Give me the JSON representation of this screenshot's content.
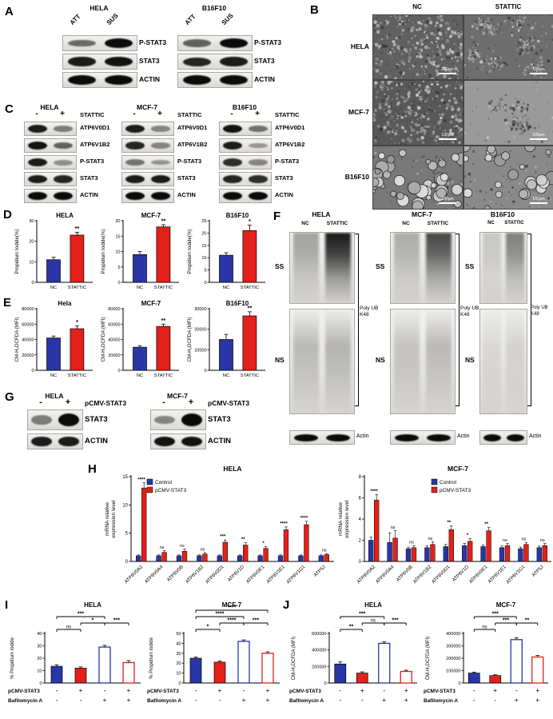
{
  "colors": {
    "blue": "#2936a5",
    "red": "#e3201b",
    "black": "#000000"
  },
  "panels": {
    "A": {
      "letter": "A",
      "groups": [
        {
          "title": "HELA",
          "lanes": [
            "ATT",
            "SUS"
          ],
          "rows": [
            {
              "label": "P-STAT3",
              "intensity": [
                0.45,
                1
              ]
            },
            {
              "label": "STAT3",
              "intensity": [
                0.9,
                0.95
              ]
            },
            {
              "label": "ACTIN",
              "intensity": [
                1,
                1
              ]
            }
          ]
        },
        {
          "title": "B16F10",
          "lanes": [
            "ATT",
            "SUS"
          ],
          "rows": [
            {
              "label": "P-STAT3",
              "intensity": [
                0.5,
                1
              ]
            },
            {
              "label": "STAT3",
              "intensity": [
                0.85,
                0.9
              ]
            },
            {
              "label": "ACTIN",
              "intensity": [
                1,
                1
              ]
            }
          ]
        }
      ]
    },
    "B": {
      "letter": "B",
      "columns": [
        "NC",
        "STATTIC"
      ],
      "rows": [
        "HELA",
        "MCF-7",
        "B16F10"
      ],
      "scale_label": "100μm"
    },
    "C": {
      "letter": "C",
      "treatment_label": "STATTIC",
      "signs": [
        "-",
        "+"
      ],
      "groups": [
        {
          "title": "HELA",
          "rows": [
            {
              "label": "ATP6V0D1",
              "intensity": [
                0.9,
                0.35
              ]
            },
            {
              "label": "ATP6V1B2",
              "intensity": [
                0.95,
                0.5
              ]
            },
            {
              "label": "P-STAT3",
              "intensity": [
                0.9,
                0.25
              ]
            },
            {
              "label": "STAT3",
              "intensity": [
                0.9,
                0.85
              ]
            },
            {
              "label": "ACTIN",
              "intensity": [
                1,
                1
              ]
            }
          ]
        },
        {
          "title": "MCF-7",
          "rows": [
            {
              "label": "ATP6V0D1",
              "intensity": [
                0.9,
                0.3
              ]
            },
            {
              "label": "ATP6V1B2",
              "intensity": [
                0.85,
                0.3
              ]
            },
            {
              "label": "P-STAT3",
              "intensity": [
                0.4,
                0.2
              ]
            },
            {
              "label": "STAT3",
              "intensity": [
                0.9,
                0.9
              ]
            },
            {
              "label": "ACTIN",
              "intensity": [
                1,
                1
              ]
            }
          ]
        },
        {
          "title": "B16F10",
          "rows": [
            {
              "label": "ATP6V0D1",
              "intensity": [
                0.95,
                0.4
              ]
            },
            {
              "label": "ATP6V1B2",
              "intensity": [
                0.9,
                0.2
              ]
            },
            {
              "label": "P-STAT3",
              "intensity": [
                0.8,
                0.3
              ]
            },
            {
              "label": "STAT3",
              "intensity": [
                0.85,
                0.8
              ]
            },
            {
              "label": "ACTIN",
              "intensity": [
                1,
                1
              ]
            }
          ]
        }
      ]
    },
    "D": {
      "letter": "D"
    },
    "E": {
      "letter": "E"
    },
    "F": {
      "letter": "F",
      "ss_label": "SS",
      "ns_label": "NS",
      "actin_label": "Actin",
      "bracket_label": "Poly UB\nK48",
      "groups": [
        {
          "title": "HELA",
          "lanes": [
            "NC",
            "STATTIC"
          ],
          "ss": [
            0.35,
            0.95
          ],
          "ns": [
            0.3,
            0.35
          ],
          "actin": [
            1,
            1
          ]
        },
        {
          "title": "MCF-7",
          "lanes": [
            "NC",
            "STATTIC"
          ],
          "ss": [
            0.3,
            0.75
          ],
          "ns": [
            0.25,
            0.3
          ],
          "actin": [
            1,
            1
          ]
        },
        {
          "title": "B16F10",
          "lanes": [
            "NC",
            "STATTIC"
          ],
          "ss": [
            0.18,
            0.5
          ],
          "ns": [
            0.12,
            0.15
          ],
          "actin": [
            1,
            1
          ]
        }
      ]
    },
    "G": {
      "letter": "G",
      "treatment_label": "pCMV-STAT3",
      "signs": [
        "-",
        "+"
      ],
      "groups": [
        {
          "title": "HELA",
          "rows": [
            {
              "label": "STAT3",
              "intensity": [
                0.35,
                1
              ]
            },
            {
              "label": "ACTIN",
              "intensity": [
                0.9,
                0.9
              ]
            }
          ]
        },
        {
          "title": "MCF-7",
          "rows": [
            {
              "label": "STAT3",
              "intensity": [
                0.3,
                1
              ]
            },
            {
              "label": "ACTIN",
              "intensity": [
                0.95,
                0.95
              ]
            }
          ]
        }
      ]
    },
    "H": {
      "letter": "H"
    },
    "I": {
      "letter": "I"
    },
    "J": {
      "letter": "J"
    }
  },
  "chart_data": [
    {
      "id": "D-HELA",
      "panel": "D",
      "type": "bar",
      "title": "HELA",
      "ylabel": "Propidium Iodide(%)",
      "categories": [
        "NC",
        "STATTIC"
      ],
      "values": [
        11,
        23
      ],
      "errors": [
        1.2,
        1.4
      ],
      "sig": "**",
      "ylim": [
        0,
        30
      ],
      "yticks": [
        0,
        10,
        20,
        30
      ],
      "styles": [
        "solid-blue",
        "solid-red"
      ]
    },
    {
      "id": "D-MCF7",
      "panel": "D",
      "type": "bar",
      "title": "MCF-7",
      "ylabel": "Propidium Iodide(%)",
      "categories": [
        "NC",
        "STATTIC"
      ],
      "values": [
        9,
        18
      ],
      "errors": [
        1,
        0.7
      ],
      "sig": "**",
      "ylim": [
        0,
        20
      ],
      "yticks": [
        0,
        5,
        10,
        15,
        20
      ],
      "styles": [
        "solid-blue",
        "solid-red"
      ]
    },
    {
      "id": "D-B16F10",
      "panel": "D",
      "type": "bar",
      "title": "B16F10",
      "ylabel": "Propidium Iodide(%)",
      "categories": [
        "NC",
        "STATTIC"
      ],
      "values": [
        11,
        21
      ],
      "errors": [
        1,
        2.2
      ],
      "sig": "*",
      "ylim": [
        0,
        25
      ],
      "yticks": [
        0,
        5,
        10,
        15,
        20,
        25
      ],
      "styles": [
        "solid-blue",
        "solid-red"
      ]
    },
    {
      "id": "E-Hela",
      "panel": "E",
      "type": "bar",
      "title": "Hela",
      "ylabel": "CM-H₂DCFDA (MFI)",
      "categories": [
        "NC",
        "STATTIC"
      ],
      "values": [
        42000,
        54000
      ],
      "errors": [
        2500,
        3500
      ],
      "sig": "*",
      "ylim": [
        0,
        80000
      ],
      "yticks": [
        0,
        20000,
        40000,
        60000,
        80000
      ],
      "styles": [
        "solid-blue",
        "solid-red"
      ]
    },
    {
      "id": "E-MCF7",
      "panel": "E",
      "type": "bar",
      "title": "MCF-7",
      "ylabel": "CM-H₂DCFDA (MFI)",
      "categories": [
        "NC",
        "STATTIC"
      ],
      "values": [
        30000,
        57000
      ],
      "errors": [
        2000,
        3000
      ],
      "sig": "**",
      "ylim": [
        0,
        80000
      ],
      "yticks": [
        0,
        20000,
        40000,
        60000,
        80000
      ],
      "styles": [
        "solid-blue",
        "solid-red"
      ]
    },
    {
      "id": "E-B16F10",
      "panel": "E",
      "type": "bar",
      "title": "B16F10",
      "ylabel": "CM-H₂DCFDA (MFI)",
      "categories": [
        "NC",
        "STATTIC"
      ],
      "values": [
        15000,
        26500
      ],
      "errors": [
        2500,
        2000
      ],
      "sig": "**",
      "ylim": [
        0,
        30000
      ],
      "yticks": [
        0,
        10000,
        20000,
        30000
      ],
      "styles": [
        "solid-blue",
        "solid-red"
      ]
    },
    {
      "id": "H-HELA",
      "panel": "H",
      "type": "grouped_bar",
      "title": "HELA",
      "ylabel_lines": [
        "mRNA relative",
        "expression level"
      ],
      "categories": [
        "ATP6V0A2",
        "ATP6V0A4",
        "ATP6V0B",
        "ATP6V1B2",
        "ATP6V0D1",
        "ATP6V1D",
        "ATP6V0E1",
        "ATP6V1E1",
        "ATP6V1G1",
        "ATP5J"
      ],
      "series": [
        {
          "name": "Control",
          "style": "solid-blue",
          "values": [
            1,
            1,
            1,
            1,
            1,
            1,
            1,
            1,
            1,
            1
          ],
          "errors": [
            0.15,
            0.15,
            0.15,
            0.15,
            0.15,
            0.15,
            0.15,
            0.15,
            0.15,
            0.15
          ]
        },
        {
          "name": "pCMV-STAT3",
          "style": "solid-red",
          "values": [
            13,
            1.6,
            1.8,
            1.3,
            3.4,
            2.9,
            2.3,
            5.6,
            6.5,
            1.2
          ],
          "errors": [
            0.9,
            0.3,
            0.4,
            0.25,
            0.4,
            0.4,
            0.3,
            0.5,
            0.6,
            0.2
          ]
        }
      ],
      "sig": [
        "****",
        "ns",
        "ns",
        "ns",
        "***",
        "**",
        "*",
        "****",
        "****",
        "ns"
      ],
      "ylim": [
        0,
        15
      ],
      "yticks": [
        0,
        5,
        10,
        15
      ],
      "legend_position": "top-left"
    },
    {
      "id": "H-MCF7",
      "panel": "H",
      "type": "grouped_bar",
      "title": "MCF-7",
      "ylabel_lines": [
        "mRNA relative",
        "expression level"
      ],
      "categories": [
        "ATP6V0A2",
        "ATP6V0A4",
        "ATP6V0B",
        "ATP6V1B2",
        "ATP6V0D1",
        "ATP6V1D",
        "ATP6V0E1",
        "ATP6V1E1",
        "ATP6V1G1",
        "ATP5J"
      ],
      "series": [
        {
          "name": "Control",
          "style": "solid-blue",
          "values": [
            2,
            1.8,
            1.2,
            1.3,
            1.4,
            1.5,
            1.4,
            1.3,
            1.2,
            1.3
          ],
          "errors": [
            0.3,
            0.9,
            0.15,
            0.2,
            0.2,
            0.2,
            0.15,
            0.15,
            0.15,
            0.15
          ]
        },
        {
          "name": "pCMV-STAT3",
          "style": "solid-red",
          "values": [
            5.8,
            2.2,
            1.3,
            1.6,
            3.0,
            1.9,
            2.9,
            1.5,
            1.6,
            1.5
          ],
          "errors": [
            0.5,
            0.7,
            0.2,
            0.25,
            0.35,
            0.25,
            0.3,
            0.2,
            0.2,
            0.2
          ]
        }
      ],
      "sig": [
        "****",
        "ns",
        "ns",
        "ns",
        "**",
        "*",
        "**",
        "ns",
        "ns",
        "ns"
      ],
      "ylim": [
        0,
        8
      ],
      "yticks": [
        0,
        2,
        4,
        6,
        8
      ],
      "legend_position": "top-center"
    },
    {
      "id": "I-HELA",
      "panel": "I",
      "type": "bar_brackets",
      "title": "HELA",
      "ylabel": "% Propidium iodide",
      "values": [
        13.5,
        12,
        29,
        16.5
      ],
      "errors": [
        1.2,
        1,
        1.4,
        1.6
      ],
      "styles": [
        "solid-blue",
        "solid-red",
        "open-blue",
        "open-red"
      ],
      "ylim": [
        0,
        40
      ],
      "yticks": [
        0,
        10,
        20,
        30,
        40
      ],
      "brackets": [
        {
          "from": 0,
          "to": 1,
          "label": "ns",
          "level": 0
        },
        {
          "from": 1,
          "to": 2,
          "label": "*",
          "level": 1
        },
        {
          "from": 2,
          "to": 3,
          "label": "***",
          "level": 1
        },
        {
          "from": 0,
          "to": 2,
          "label": "***",
          "level": 2
        }
      ],
      "conditions": [
        {
          "label": "pCMV-STAT3",
          "signs": [
            "-",
            "+",
            "-",
            "+"
          ]
        },
        {
          "label": "Bafilomycin A",
          "signs": [
            "-",
            "-",
            "+",
            "+"
          ]
        }
      ]
    },
    {
      "id": "I-MCF7",
      "panel": "I",
      "type": "bar_brackets",
      "title": "MCF-7",
      "ylabel": "% Propidium iodide",
      "values": [
        25,
        21,
        42,
        30
      ],
      "errors": [
        1.2,
        1.2,
        1.5,
        1.5
      ],
      "styles": [
        "solid-blue",
        "solid-red",
        "open-blue",
        "open-red"
      ],
      "ylim": [
        0,
        50
      ],
      "yticks": [
        0,
        10,
        20,
        30,
        40,
        50
      ],
      "brackets": [
        {
          "from": 0,
          "to": 1,
          "label": "*",
          "level": 0
        },
        {
          "from": 1,
          "to": 2,
          "label": "****",
          "level": 1
        },
        {
          "from": 2,
          "to": 3,
          "label": "***",
          "level": 1
        },
        {
          "from": 0,
          "to": 2,
          "label": "****",
          "level": 2
        },
        {
          "from": 0,
          "to": 3,
          "label": "****",
          "level": 3
        }
      ],
      "conditions": [
        {
          "label": "pCMV-STAT3",
          "signs": [
            "-",
            "+",
            "-",
            "+"
          ]
        },
        {
          "label": "Bafilomycin A",
          "signs": [
            "-",
            "-",
            "+",
            "+"
          ]
        }
      ]
    },
    {
      "id": "J-HELA",
      "panel": "J",
      "type": "bar_brackets",
      "title": "HELA",
      "ylabel": "CM-H₂DCFDA (MFI)",
      "values": [
        230000,
        120000,
        480000,
        140000
      ],
      "errors": [
        25000,
        15000,
        20000,
        15000
      ],
      "styles": [
        "solid-blue",
        "solid-red",
        "open-blue",
        "open-red"
      ],
      "ylim": [
        0,
        600000
      ],
      "yticks": [
        0,
        200000,
        400000,
        600000
      ],
      "brackets": [
        {
          "from": 0,
          "to": 1,
          "label": "**",
          "level": 0
        },
        {
          "from": 1,
          "to": 2,
          "label": "ns",
          "level": 1
        },
        {
          "from": 2,
          "to": 3,
          "label": "***",
          "level": 1
        },
        {
          "from": 0,
          "to": 2,
          "label": "***",
          "level": 2
        }
      ],
      "conditions": [
        {
          "label": "pCMV-STAT3",
          "signs": [
            "-",
            "+",
            "-",
            "+"
          ]
        },
        {
          "label": "Bafilomycin A",
          "signs": [
            "-",
            "-",
            "+",
            "+"
          ]
        }
      ]
    },
    {
      "id": "J-MCF7",
      "panel": "J",
      "type": "bar_brackets",
      "title": "MCF-7",
      "ylabel": "CM-H₂DCFDA (MFI)",
      "values": [
        80000,
        60000,
        350000,
        210000
      ],
      "errors": [
        8000,
        6000,
        15000,
        12000
      ],
      "styles": [
        "solid-blue",
        "solid-red",
        "open-blue",
        "open-red"
      ],
      "ylim": [
        0,
        400000
      ],
      "yticks": [
        0,
        100000,
        200000,
        300000,
        400000
      ],
      "brackets": [
        {
          "from": 0,
          "to": 1,
          "label": "ns",
          "level": 0
        },
        {
          "from": 1,
          "to": 2,
          "label": "***",
          "level": 1
        },
        {
          "from": 2,
          "to": 3,
          "label": "**",
          "level": 1
        },
        {
          "from": 0,
          "to": 2,
          "label": "***",
          "level": 2
        }
      ],
      "conditions": [
        {
          "label": "pCMV-STAT3",
          "signs": [
            "-",
            "+",
            "-",
            "+"
          ]
        },
        {
          "label": "Bafilomycin A",
          "signs": [
            "-",
            "-",
            "+",
            "+"
          ]
        }
      ]
    }
  ]
}
